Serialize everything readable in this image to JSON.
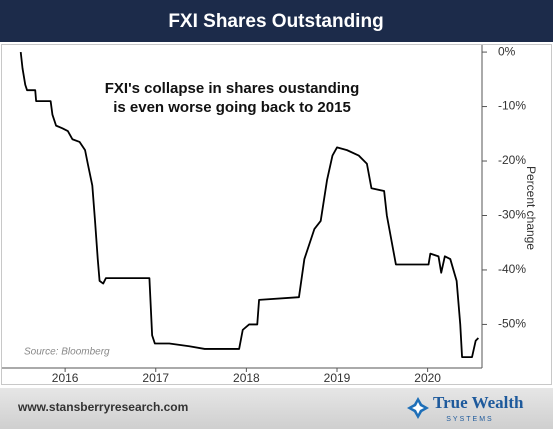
{
  "header": {
    "title": "FXI Shares Outstanding"
  },
  "chart_data": {
    "type": "line",
    "annotation": [
      "FXI's collapse in shares oustanding",
      "is even worse going back to 2015"
    ],
    "source": "Source: Bloomberg",
    "y_label": "Percent change",
    "x": [
      2015.51,
      2015.53,
      2015.56,
      2015.58,
      2015.67,
      2015.68,
      2015.84,
      2015.86,
      2015.9,
      2015.97,
      2016.03,
      2016.08,
      2016.16,
      2016.22,
      2016.25,
      2016.3,
      2016.33,
      2016.36,
      2016.38,
      2016.42,
      2016.45,
      2016.93,
      2016.96,
      2016.99,
      2017.15,
      2017.37,
      2017.54,
      2017.92,
      2017.96,
      2018.03,
      2018.12,
      2018.14,
      2018.58,
      2018.64,
      2018.75,
      2018.82,
      2018.89,
      2018.95,
      2019.0,
      2019.11,
      2019.24,
      2019.33,
      2019.38,
      2019.52,
      2019.55,
      2019.6,
      2019.65,
      2020.01,
      2020.03,
      2020.12,
      2020.15,
      2020.19,
      2020.25,
      2020.32,
      2020.36,
      2020.38,
      2020.49,
      2020.53,
      2020.56
    ],
    "series": [
      {
        "color": "#000000",
        "values": [
          0,
          -3,
          -6,
          -7,
          -7,
          -9,
          -9,
          -11.5,
          -13.5,
          -14,
          -14.5,
          -16,
          -16.5,
          -18,
          -20.5,
          -24.5,
          -31,
          -38,
          -42,
          -42.5,
          -41.5,
          -41.5,
          -52,
          -53.5,
          -53.5,
          -54,
          -54.5,
          -54.5,
          -51,
          -50,
          -50,
          -45.5,
          -45,
          -38,
          -32.5,
          -31,
          -23.5,
          -19,
          -17.5,
          -18,
          -19,
          -20.5,
          -25,
          -25.5,
          -30,
          -34.5,
          -39,
          -39,
          -37,
          -37.5,
          -40.5,
          -37.5,
          -38,
          -42,
          -50,
          -56,
          -56,
          -53,
          -52.5
        ]
      }
    ],
    "xlim": [
      2015.48,
      2020.6
    ],
    "xticks": [
      2016,
      2017,
      2018,
      2019,
      2020
    ],
    "ylim": [
      -58,
      1.3
    ],
    "yticks": [
      {
        "value": 0,
        "label": "0%"
      },
      {
        "value": -10,
        "label": "-10%"
      },
      {
        "value": -20,
        "label": "-20%"
      },
      {
        "value": -30,
        "label": "-30%"
      },
      {
        "value": -40,
        "label": "-40%"
      },
      {
        "value": -50,
        "label": "-50%"
      }
    ]
  },
  "footer": {
    "url": "www.stansberryresearch.com",
    "logo": "True Wealth",
    "logo_sub": "SYSTEMS"
  }
}
